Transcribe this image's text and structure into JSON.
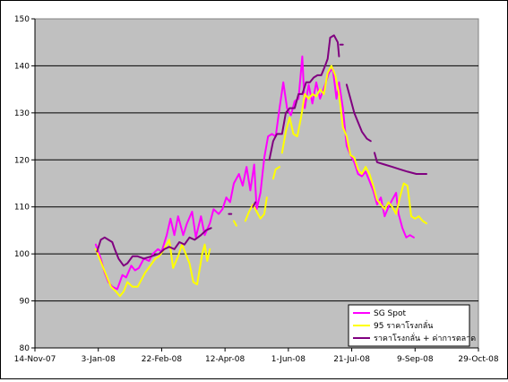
{
  "chart_data": {
    "type": "line",
    "title": "",
    "xlabel": "",
    "ylabel": "",
    "ylim": [
      80,
      150
    ],
    "yticks": [
      80,
      90,
      100,
      110,
      120,
      130,
      140,
      150
    ],
    "xlim": [
      "2007-11-14",
      "2008-10-29"
    ],
    "xtick_labels": [
      "14-Nov-07",
      "3-Jan-08",
      "22-Feb-08",
      "12-Apr-08",
      "1-Jun-08",
      "21-Jul-08",
      "9-Sep-08",
      "29-Oct-08"
    ],
    "xtick_dates": [
      "2007-11-14",
      "2008-01-03",
      "2008-02-22",
      "2008-04-12",
      "2008-06-01",
      "2008-07-21",
      "2008-09-09",
      "2008-10-29"
    ],
    "plot_background": "#c0c0c0",
    "grid": "horizontal",
    "legend_position": "bottom-right",
    "series": [
      {
        "name": "SG Spot",
        "color": "#ff00ff",
        "segments": [
          [
            [
              "2008-01-01",
              102.0
            ],
            [
              "2008-01-03",
              100.5
            ],
            [
              "2008-01-05",
              99.0
            ],
            [
              "2008-01-08",
              96.0
            ],
            [
              "2008-01-11",
              94.0
            ],
            [
              "2008-01-14",
              93.0
            ],
            [
              "2008-01-18",
              92.5
            ],
            [
              "2008-01-22",
              95.5
            ],
            [
              "2008-01-25",
              95.0
            ],
            [
              "2008-01-29",
              97.5
            ],
            [
              "2008-02-01",
              96.5
            ],
            [
              "2008-02-04",
              97.0
            ],
            [
              "2008-02-08",
              99.0
            ],
            [
              "2008-02-12",
              98.5
            ],
            [
              "2008-02-15",
              100.0
            ],
            [
              "2008-02-19",
              101.0
            ],
            [
              "2008-02-22",
              100.5
            ],
            [
              "2008-02-26",
              104.0
            ],
            [
              "2008-02-29",
              107.5
            ],
            [
              "2008-03-03",
              104.0
            ],
            [
              "2008-03-06",
              108.0
            ],
            [
              "2008-03-10",
              104.0
            ],
            [
              "2008-03-13",
              106.5
            ],
            [
              "2008-03-17",
              109.0
            ],
            [
              "2008-03-20",
              103.5
            ],
            [
              "2008-03-24",
              108.0
            ],
            [
              "2008-03-27",
              104.0
            ],
            [
              "2008-03-31",
              106.5
            ],
            [
              "2008-04-03",
              109.5
            ],
            [
              "2008-04-07",
              108.5
            ],
            [
              "2008-04-10",
              109.5
            ],
            [
              "2008-04-13",
              112.0
            ],
            [
              "2008-04-16",
              111.0
            ],
            [
              "2008-04-19",
              115.0
            ],
            [
              "2008-04-23",
              117.0
            ],
            [
              "2008-04-26",
              114.5
            ],
            [
              "2008-04-29",
              118.5
            ],
            [
              "2008-05-02",
              113.5
            ],
            [
              "2008-05-05",
              119.0
            ],
            [
              "2008-05-07",
              109.5
            ],
            [
              "2008-05-10",
              113.0
            ],
            [
              "2008-05-13",
              120.5
            ],
            [
              "2008-05-16",
              125.0
            ],
            [
              "2008-05-19",
              125.5
            ],
            [
              "2008-05-22",
              125.0
            ],
            [
              "2008-05-25",
              131.0
            ],
            [
              "2008-05-28",
              136.5
            ],
            [
              "2008-05-31",
              131.0
            ],
            [
              "2008-06-03",
              129.5
            ],
            [
              "2008-06-06",
              132.5
            ],
            [
              "2008-06-09",
              133.0
            ],
            [
              "2008-06-12",
              142.0
            ],
            [
              "2008-06-14",
              131.0
            ],
            [
              "2008-06-17",
              136.0
            ],
            [
              "2008-06-20",
              132.0
            ],
            [
              "2008-06-23",
              136.5
            ],
            [
              "2008-06-26",
              133.0
            ],
            [
              "2008-06-30",
              136.0
            ],
            [
              "2008-07-03",
              138.5
            ],
            [
              "2008-07-06",
              139.5
            ],
            [
              "2008-07-09",
              133.0
            ],
            [
              "2008-07-11",
              136.5
            ],
            [
              "2008-07-14",
              131.0
            ],
            [
              "2008-07-17",
              123.0
            ],
            [
              "2008-07-20",
              121.0
            ],
            [
              "2008-07-23",
              119.5
            ],
            [
              "2008-07-26",
              117.0
            ],
            [
              "2008-07-29",
              116.5
            ],
            [
              "2008-08-01",
              117.5
            ],
            [
              "2008-08-04",
              115.5
            ],
            [
              "2008-08-07",
              113.5
            ],
            [
              "2008-08-10",
              110.5
            ],
            [
              "2008-08-13",
              112.0
            ],
            [
              "2008-08-16",
              108.0
            ],
            [
              "2008-08-19",
              110.0
            ],
            [
              "2008-08-22",
              111.5
            ],
            [
              "2008-08-25",
              113.0
            ],
            [
              "2008-08-27",
              108.5
            ],
            [
              "2008-08-30",
              105.5
            ],
            [
              "2008-09-02",
              103.5
            ],
            [
              "2008-09-05",
              104.0
            ],
            [
              "2008-09-08",
              103.5
            ]
          ]
        ]
      },
      {
        "name": "95 ราคาโรงกลั่น",
        "color": "#ffff00",
        "segments": [
          [
            [
              "2008-01-01",
              101.0
            ],
            [
              "2008-01-04",
              99.0
            ],
            [
              "2008-01-07",
              97.0
            ],
            [
              "2008-01-10",
              95.0
            ],
            [
              "2008-01-13",
              93.0
            ],
            [
              "2008-01-17",
              92.0
            ],
            [
              "2008-01-20",
              91.0
            ],
            [
              "2008-01-23",
              92.0
            ],
            [
              "2008-01-26",
              94.0
            ],
            [
              "2008-01-30",
              93.0
            ],
            [
              "2008-02-03",
              93.0
            ],
            [
              "2008-02-06",
              94.5
            ],
            [
              "2008-02-09",
              96.0
            ],
            [
              "2008-02-13",
              97.5
            ],
            [
              "2008-02-17",
              99.0
            ],
            [
              "2008-02-20",
              99.5
            ],
            [
              "2008-02-24",
              101.0
            ],
            [
              "2008-02-28",
              103.0
            ],
            [
              "2008-03-02",
              97.0
            ],
            [
              "2008-03-06",
              99.5
            ],
            [
              "2008-03-09",
              102.0
            ],
            [
              "2008-03-12",
              100.0
            ],
            [
              "2008-03-15",
              98.0
            ],
            [
              "2008-03-18",
              94.0
            ],
            [
              "2008-03-21",
              93.5
            ],
            [
              "2008-03-25",
              100.0
            ],
            [
              "2008-03-27",
              102.0
            ],
            [
              "2008-03-29",
              98.5
            ],
            [
              "2008-03-31",
              101.0
            ]
          ],
          [
            [
              "2008-04-19",
              107.0
            ],
            [
              "2008-04-21",
              106.0
            ]
          ],
          [
            [
              "2008-04-28",
              107.0
            ],
            [
              "2008-05-01",
              109.0
            ],
            [
              "2008-05-04",
              110.5
            ],
            [
              "2008-05-07",
              109.0
            ],
            [
              "2008-05-10",
              107.5
            ],
            [
              "2008-05-13",
              108.5
            ],
            [
              "2008-05-15",
              112.0
            ]
          ],
          [
            [
              "2008-05-20",
              116.0
            ],
            [
              "2008-05-22",
              118.0
            ],
            [
              "2008-05-25",
              118.5
            ]
          ],
          [
            [
              "2008-05-27",
              121.5
            ],
            [
              "2008-05-30",
              126.0
            ],
            [
              "2008-06-02",
              129.0
            ],
            [
              "2008-06-05",
              125.5
            ],
            [
              "2008-06-08",
              125.0
            ],
            [
              "2008-06-11",
              129.0
            ],
            [
              "2008-06-14",
              134.0
            ],
            [
              "2008-06-17",
              133.0
            ],
            [
              "2008-06-20",
              134.0
            ],
            [
              "2008-06-23",
              133.5
            ],
            [
              "2008-06-26",
              135.0
            ],
            [
              "2008-06-29",
              134.0
            ],
            [
              "2008-07-02",
              138.5
            ],
            [
              "2008-07-05",
              140.0
            ],
            [
              "2008-07-08",
              138.0
            ],
            [
              "2008-07-11",
              134.0
            ],
            [
              "2008-07-14",
              127.0
            ],
            [
              "2008-07-17",
              125.0
            ],
            [
              "2008-07-20",
              121.0
            ],
            [
              "2008-07-23",
              120.5
            ],
            [
              "2008-07-26",
              118.0
            ],
            [
              "2008-07-29",
              117.0
            ],
            [
              "2008-08-01",
              118.5
            ],
            [
              "2008-08-04",
              117.0
            ],
            [
              "2008-08-07",
              114.5
            ],
            [
              "2008-08-10",
              111.5
            ],
            [
              "2008-08-13",
              110.5
            ],
            [
              "2008-08-16",
              109.5
            ],
            [
              "2008-08-19",
              111.0
            ],
            [
              "2008-08-22",
              110.0
            ],
            [
              "2008-08-25",
              108.5
            ],
            [
              "2008-08-28",
              112.0
            ],
            [
              "2008-08-31",
              115.0
            ],
            [
              "2008-09-03",
              114.5
            ],
            [
              "2008-09-06",
              108.0
            ],
            [
              "2008-09-09",
              107.5
            ],
            [
              "2008-09-12",
              108.0
            ],
            [
              "2008-09-15",
              107.0
            ],
            [
              "2008-09-18",
              106.5
            ]
          ]
        ]
      },
      {
        "name": "ราคาโรงกลั่น + ค่าการตลาด",
        "color": "#800080",
        "segments": [
          [
            [
              "2008-01-02",
              100.5
            ],
            [
              "2008-01-05",
              103.0
            ],
            [
              "2008-01-08",
              103.5
            ],
            [
              "2008-01-11",
              103.0
            ],
            [
              "2008-01-14",
              102.5
            ],
            [
              "2008-01-16",
              101.0
            ],
            [
              "2008-01-19",
              99.0
            ],
            [
              "2008-01-23",
              97.5
            ],
            [
              "2008-01-26",
              98.0
            ],
            [
              "2008-01-30",
              99.5
            ],
            [
              "2008-02-03",
              99.5
            ],
            [
              "2008-02-08",
              99.0
            ],
            [
              "2008-02-14",
              99.5
            ],
            [
              "2008-02-20",
              100.0
            ],
            [
              "2008-02-24",
              101.0
            ],
            [
              "2008-02-28",
              101.5
            ],
            [
              "2008-03-03",
              101.0
            ],
            [
              "2008-03-07",
              102.5
            ],
            [
              "2008-03-11",
              102.0
            ],
            [
              "2008-03-15",
              103.5
            ],
            [
              "2008-03-19",
              103.0
            ],
            [
              "2008-03-24",
              104.0
            ],
            [
              "2008-03-28",
              105.0
            ],
            [
              "2008-04-01",
              105.5
            ]
          ],
          [
            [
              "2008-04-15",
              108.5
            ],
            [
              "2008-04-17",
              108.5
            ]
          ],
          [
            [
              "2008-05-04",
              110.0
            ],
            [
              "2008-05-06",
              111.0
            ]
          ],
          [
            [
              "2008-05-17",
              120.0
            ],
            [
              "2008-05-20",
              124.0
            ],
            [
              "2008-05-23",
              125.5
            ],
            [
              "2008-05-27",
              125.5
            ],
            [
              "2008-05-30",
              130.0
            ],
            [
              "2008-06-02",
              131.0
            ],
            [
              "2008-06-06",
              131.0
            ],
            [
              "2008-06-09",
              134.0
            ],
            [
              "2008-06-12",
              134.0
            ],
            [
              "2008-06-15",
              136.5
            ],
            [
              "2008-06-18",
              136.5
            ],
            [
              "2008-06-21",
              137.5
            ],
            [
              "2008-06-24",
              138.0
            ],
            [
              "2008-06-27",
              138.0
            ],
            [
              "2008-06-30",
              140.0
            ],
            [
              "2008-07-02",
              141.5
            ],
            [
              "2008-07-04",
              146.0
            ],
            [
              "2008-07-07",
              146.5
            ],
            [
              "2008-07-10",
              145.0
            ],
            [
              "2008-07-11",
              142.0
            ]
          ],
          [
            [
              "2008-07-12",
              144.5
            ],
            [
              "2008-07-14",
              144.5
            ]
          ],
          [
            [
              "2008-07-17",
              136.0
            ],
            [
              "2008-07-20",
              133.0
            ],
            [
              "2008-07-23",
              130.0
            ],
            [
              "2008-07-26",
              128.0
            ],
            [
              "2008-07-29",
              126.0
            ],
            [
              "2008-08-02",
              124.5
            ],
            [
              "2008-08-05",
              124.0
            ]
          ],
          [
            [
              "2008-08-08",
              121.5
            ],
            [
              "2008-08-10",
              119.5
            ],
            [
              "2008-08-16",
              119.0
            ],
            [
              "2008-08-22",
              118.5
            ],
            [
              "2008-08-28",
              118.0
            ],
            [
              "2008-09-03",
              117.5
            ],
            [
              "2008-09-10",
              117.0
            ],
            [
              "2008-09-18",
              117.0
            ]
          ]
        ]
      }
    ]
  }
}
